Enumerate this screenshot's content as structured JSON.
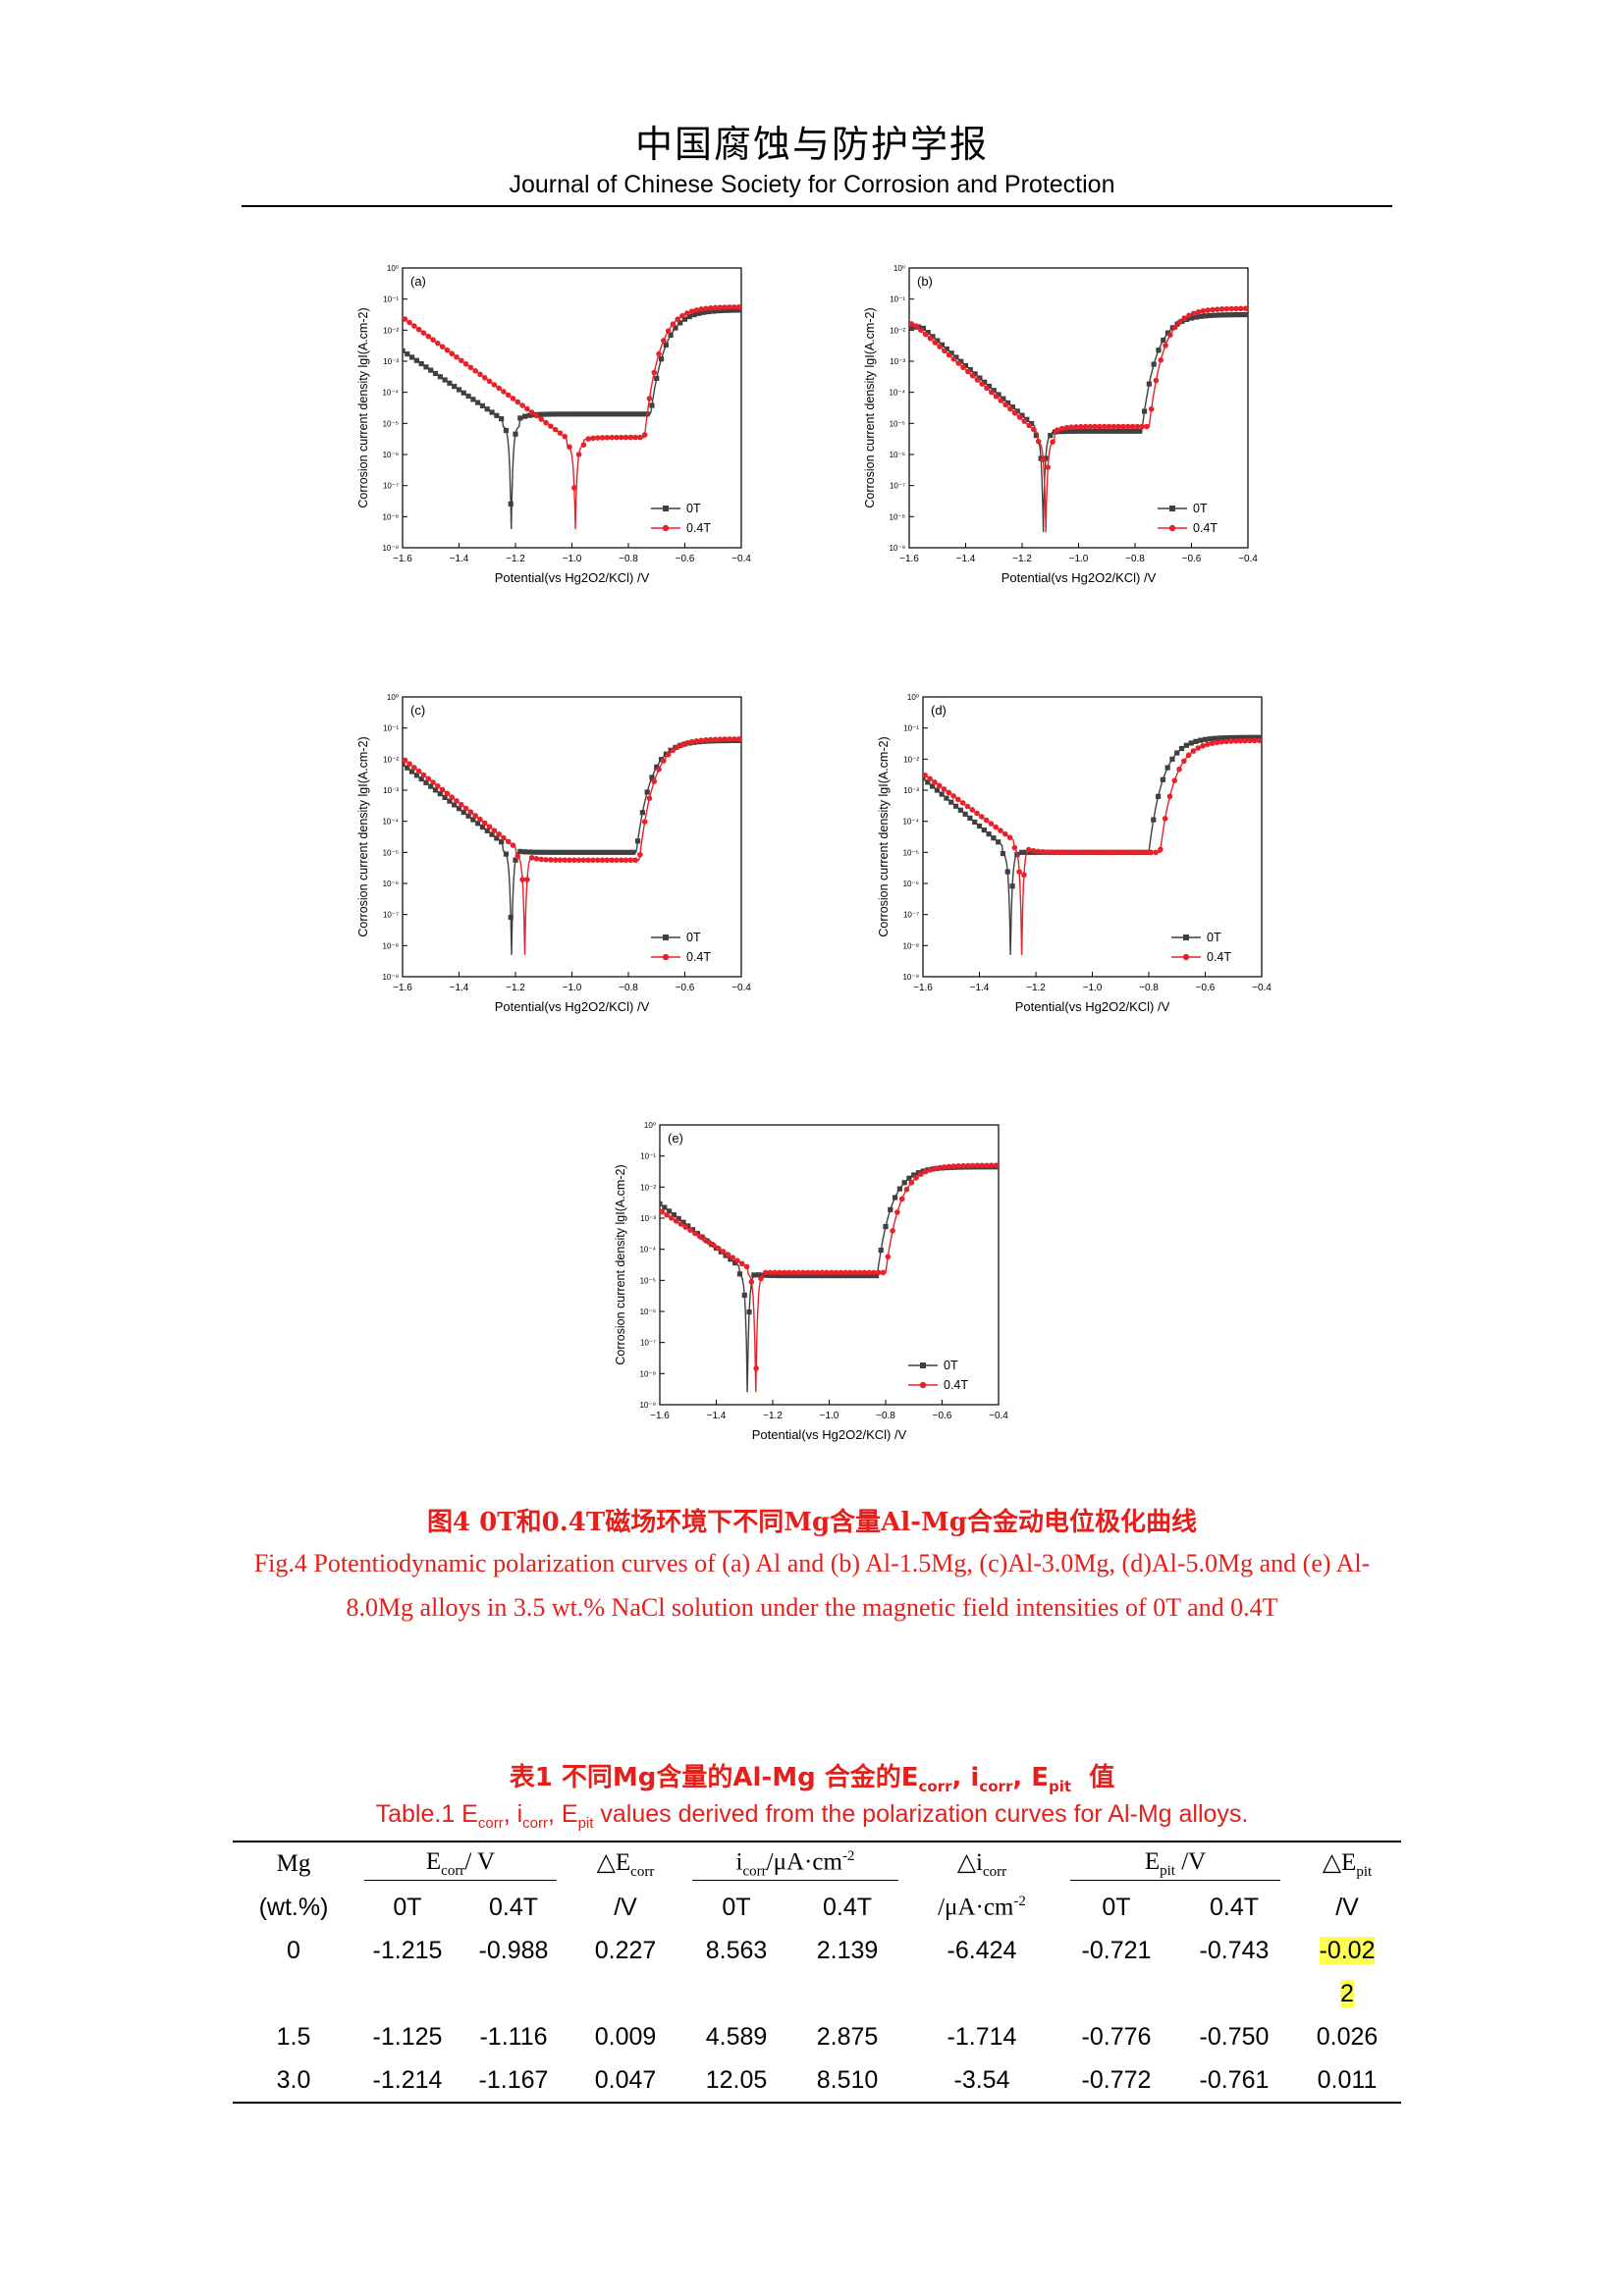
{
  "header": {
    "journal_cn": "中国腐蚀与防护学报",
    "journal_en": "Journal of Chinese Society for Corrosion and Protection"
  },
  "figure": {
    "caption_cn": "图4 0T和0.4T磁场环境下不同Mg含量Al-Mg合金动电位极化曲线",
    "caption_en": "Fig.4 Potentiodynamic polarization curves of (a) Al and (b) Al-1.5Mg, (c)Al-3.0Mg, (d)Al-5.0Mg and (e) Al-8.0Mg alloys in 3.5 wt.% NaCl solution under the magnetic field intensities of 0T and 0.4T",
    "xlabel": "Potential(vs Hg2O2/KCl) /V",
    "ylabel": "Corrosion current density lgI(A.cm-2)",
    "legend": [
      "0T",
      "0.4T"
    ],
    "series_colors": {
      "0T": "#404040",
      "0.4T": "#e8222a"
    }
  },
  "chart_data": [
    {
      "panel": "(a)",
      "type": "line",
      "xlim": [
        -1.6,
        -0.4
      ],
      "ylim": [
        -9,
        0
      ],
      "yscale": "log",
      "xticks": [
        -1.6,
        -1.4,
        -1.2,
        -1.0,
        -0.8,
        -0.6,
        -0.4
      ],
      "yticks": [
        0,
        -1,
        -2,
        -3,
        -4,
        -5,
        -6,
        -7,
        -8,
        -9
      ],
      "series": [
        {
          "name": "0T",
          "ecorr": -1.215,
          "icorr_log": -5.07,
          "cath_slope": 0.16,
          "epit": -0.721,
          "ipass_log": -4.7,
          "inear": -2.0,
          "iend": -1.35,
          "ilow": -8.4
        },
        {
          "name": "0.4T",
          "ecorr": -0.988,
          "icorr_log": -5.67,
          "cath_slope": 0.15,
          "epit": -0.743,
          "ipass_log": -5.45,
          "inear": -1.2,
          "iend": -1.25,
          "ilow": -8.4
        }
      ]
    },
    {
      "panel": "(b)",
      "type": "line",
      "xlim": [
        -1.6,
        -0.4
      ],
      "ylim": [
        -9,
        0
      ],
      "yscale": "log",
      "xticks": [
        -1.6,
        -1.4,
        -1.2,
        -1.0,
        -0.8,
        -0.6,
        -0.4
      ],
      "yticks": [
        0,
        -1,
        -2,
        -3,
        -4,
        -5,
        -6,
        -7,
        -8,
        -9
      ],
      "series": [
        {
          "name": "0T",
          "ecorr": -1.125,
          "icorr_log": -5.34,
          "cath_slope": 0.125,
          "epit": -0.776,
          "ipass_log": -5.25,
          "inear": -1.9,
          "iend": -1.5,
          "ilow": -8.5
        },
        {
          "name": "0.4T",
          "ecorr": -1.116,
          "icorr_log": -5.54,
          "cath_slope": 0.125,
          "epit": -0.75,
          "ipass_log": -5.1,
          "inear": -1.8,
          "iend": -1.3,
          "ilow": -8.5
        }
      ]
    },
    {
      "panel": "(c)",
      "type": "line",
      "xlim": [
        -1.6,
        -0.4
      ],
      "ylim": [
        -9,
        0
      ],
      "yscale": "log",
      "xticks": [
        -1.6,
        -1.4,
        -1.2,
        -1.0,
        -0.8,
        -0.6,
        -0.4
      ],
      "yticks": [
        0,
        -1,
        -2,
        -3,
        -4,
        -5,
        -6,
        -7,
        -8,
        -9
      ],
      "series": [
        {
          "name": "0T",
          "ecorr": -1.214,
          "icorr_log": -4.92,
          "cath_slope": 0.14,
          "epit": -0.772,
          "ipass_log": -5.0,
          "inear": -2.0,
          "iend": -1.4,
          "ilow": -8.3
        },
        {
          "name": "0.4T",
          "ecorr": -1.167,
          "icorr_log": -5.07,
          "cath_slope": 0.14,
          "epit": -0.761,
          "ipass_log": -5.25,
          "inear": -2.0,
          "iend": -1.35,
          "ilow": -8.3
        }
      ]
    },
    {
      "panel": "(d)",
      "type": "line",
      "xlim": [
        -1.6,
        -0.4
      ],
      "ylim": [
        -9,
        0
      ],
      "yscale": "log",
      "xticks": [
        -1.6,
        -1.4,
        -1.2,
        -1.0,
        -0.8,
        -0.6,
        -0.4
      ],
      "yticks": [
        0,
        -1,
        -2,
        -3,
        -4,
        -5,
        -6,
        -7,
        -8,
        -9
      ],
      "series": [
        {
          "name": "0T",
          "ecorr": -1.29,
          "icorr_log": -5.0,
          "cath_slope": 0.13,
          "epit": -0.8,
          "ipass_log": -5.0,
          "inear": -2.0,
          "iend": -1.3,
          "ilow": -8.3
        },
        {
          "name": "0.4T",
          "ecorr": -1.25,
          "icorr_log": -4.8,
          "cath_slope": 0.15,
          "epit": -0.76,
          "ipass_log": -5.0,
          "inear": -2.0,
          "iend": -1.4,
          "ilow": -8.3
        }
      ]
    },
    {
      "panel": "(e)",
      "type": "line",
      "xlim": [
        -1.6,
        -0.4
      ],
      "ylim": [
        -9,
        0
      ],
      "yscale": "log",
      "xticks": [
        -1.6,
        -1.4,
        -1.2,
        -1.0,
        -0.8,
        -0.6,
        -0.4
      ],
      "yticks": [
        0,
        -1,
        -2,
        -3,
        -4,
        -5,
        -6,
        -7,
        -8,
        -9
      ],
      "series": [
        {
          "name": "0T",
          "ecorr": -1.29,
          "icorr_log": -4.75,
          "cath_slope": 0.14,
          "epit": -0.83,
          "ipass_log": -4.85,
          "inear": -2.0,
          "iend": -1.35,
          "ilow": -8.6
        },
        {
          "name": "0.4T",
          "ecorr": -1.26,
          "icorr_log": -4.75,
          "cath_slope": 0.17,
          "epit": -0.8,
          "ipass_log": -4.75,
          "inear": -1.7,
          "iend": -1.3,
          "ilow": -8.6
        }
      ]
    }
  ],
  "table": {
    "caption_cn": "表1 不同Mg含量的Al-Mg 合金的E",
    "caption_cn_tail": "值",
    "caption_en_prefix": "Table.1 E",
    "caption_en_suffix": " values derived from the polarization curves for Al-Mg alloys.",
    "sub_corr": "corr",
    "sub_pit": "pit",
    "col_mg": "Mg",
    "col_mg_unit": "(wt.%)",
    "col_ecorr": "/ V",
    "col_decorr": "△E",
    "col_decorr_unit": "/V",
    "col_icorr": "/μA·cm",
    "col_dicorr": "△i",
    "col_dicorr_unit": "/μA·cm",
    "sup_m2": "-2",
    "col_epit": " /V",
    "col_depit": "△E",
    "col_depit_unit": "/V",
    "sub_0t": "0T",
    "sub_04t": "0.4T",
    "rows": [
      {
        "mg": "0",
        "ecorr_0": "-1.215",
        "ecorr_04": "-0.988",
        "decorr": "0.227",
        "icorr_0": "8.563",
        "icorr_04": "2.139",
        "dicorr": "-6.424",
        "epit_0": "-0.721",
        "epit_04": "-0.743",
        "depit": "-0.02",
        "depit_wrap": "2"
      },
      {
        "mg": "1.5",
        "ecorr_0": "-1.125",
        "ecorr_04": "-1.116",
        "decorr": "0.009",
        "icorr_0": "4.589",
        "icorr_04": "2.875",
        "dicorr": "-1.714",
        "epit_0": "-0.776",
        "epit_04": "-0.750",
        "depit": "0.026"
      },
      {
        "mg": "3.0",
        "ecorr_0": "-1.214",
        "ecorr_04": "-1.167",
        "decorr": "0.047",
        "icorr_0": "12.05",
        "icorr_04": "8.510",
        "dicorr": "-3.54",
        "epit_0": "-0.772",
        "epit_04": "-0.761",
        "depit": "0.011"
      }
    ]
  }
}
